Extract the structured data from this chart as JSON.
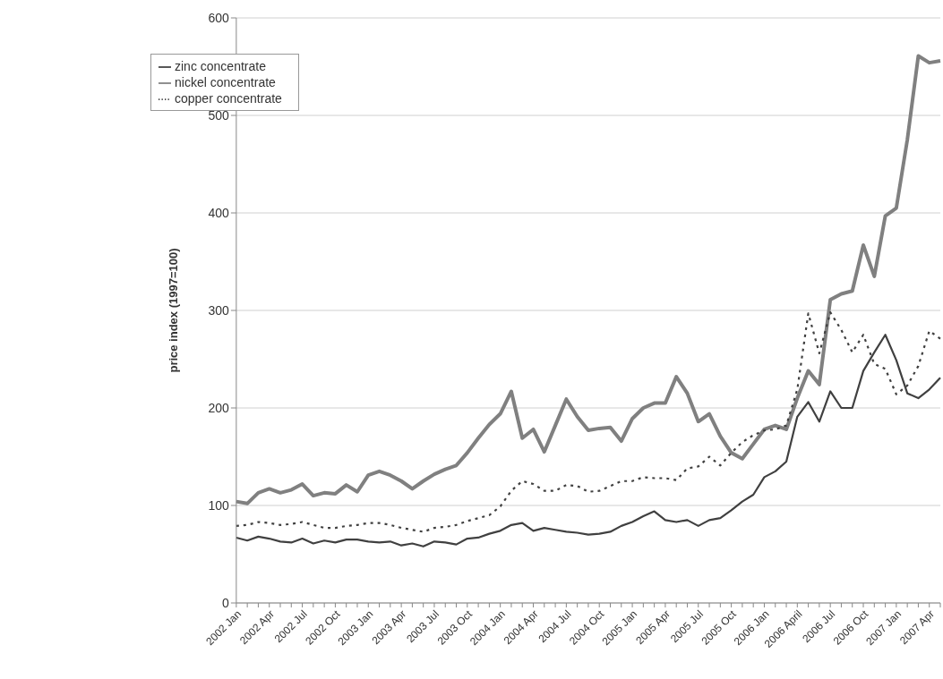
{
  "chart_data": {
    "type": "line",
    "ylabel": "price index (1997=100)",
    "categories": [
      "2002 Jan",
      null,
      null,
      "2002 Apr",
      null,
      null,
      "2002 Jul",
      null,
      null,
      "2002 Oct",
      null,
      null,
      "2003 Jan",
      null,
      null,
      "2003 Apr",
      null,
      null,
      "2003 Jul",
      null,
      null,
      "2003 Oct",
      null,
      null,
      "2004 Jan",
      null,
      null,
      "2004 Apr",
      null,
      null,
      "2004 Jul",
      null,
      null,
      "2004 Oct",
      null,
      null,
      "2005 Jan",
      null,
      null,
      "2005 Apr",
      null,
      null,
      "2005 Jul",
      null,
      null,
      "2005 Oct",
      null,
      null,
      "2006 Jan",
      null,
      null,
      "2006 April",
      null,
      null,
      "2006 Jul",
      null,
      null,
      "2006 Oct",
      null,
      null,
      "2007 Jan",
      null,
      null,
      "2007 Apr",
      null
    ],
    "series": [
      {
        "name": "zinc concentrate",
        "color": "#404040",
        "line_style": "solid",
        "values": [
          67,
          64,
          68,
          66,
          63,
          62,
          66,
          61,
          64,
          62,
          65,
          65,
          63,
          62,
          63,
          59,
          61,
          58,
          63,
          62,
          60,
          66,
          67,
          71,
          74,
          80,
          82,
          74,
          77,
          75,
          73,
          72,
          70,
          71,
          73,
          79,
          83,
          89,
          94,
          85,
          83,
          85,
          79,
          85,
          87,
          95,
          104,
          111,
          129,
          135,
          145,
          191,
          206,
          186,
          217,
          200,
          200,
          238,
          257,
          275,
          249,
          215,
          210,
          219,
          231
        ]
      },
      {
        "name": "nickel concentrate",
        "color": "#808080",
        "line_style": "solid",
        "values": [
          104,
          102,
          113,
          117,
          113,
          116,
          122,
          110,
          113,
          112,
          121,
          114,
          131,
          135,
          131,
          125,
          117,
          125,
          132,
          137,
          141,
          154,
          169,
          183,
          194,
          217,
          169,
          178,
          155,
          182,
          209,
          191,
          177,
          179,
          180,
          166,
          189,
          200,
          205,
          205,
          232,
          215,
          186,
          194,
          171,
          154,
          148,
          163,
          178,
          182,
          178,
          210,
          238,
          224,
          311,
          317,
          320,
          367,
          335,
          397,
          405,
          475,
          561,
          554,
          556
        ]
      },
      {
        "name": "copper concentrate",
        "color": "#404040",
        "line_style": "dotted",
        "values": [
          79,
          80,
          83,
          82,
          80,
          81,
          83,
          80,
          77,
          77,
          79,
          80,
          82,
          82,
          80,
          77,
          75,
          73,
          77,
          78,
          80,
          84,
          87,
          90,
          99,
          115,
          125,
          122,
          115,
          115,
          121,
          120,
          114,
          115,
          120,
          125,
          125,
          129,
          128,
          128,
          126,
          138,
          140,
          150,
          141,
          154,
          165,
          172,
          177,
          178,
          182,
          219,
          297,
          256,
          298,
          280,
          257,
          275,
          245,
          240,
          214,
          223,
          243,
          279,
          271
        ]
      }
    ],
    "ylim": [
      0,
      600
    ],
    "yticks": [
      0,
      100,
      200,
      300,
      400,
      500,
      600
    ],
    "grid": "y",
    "legend": "top left",
    "marker": "none"
  }
}
